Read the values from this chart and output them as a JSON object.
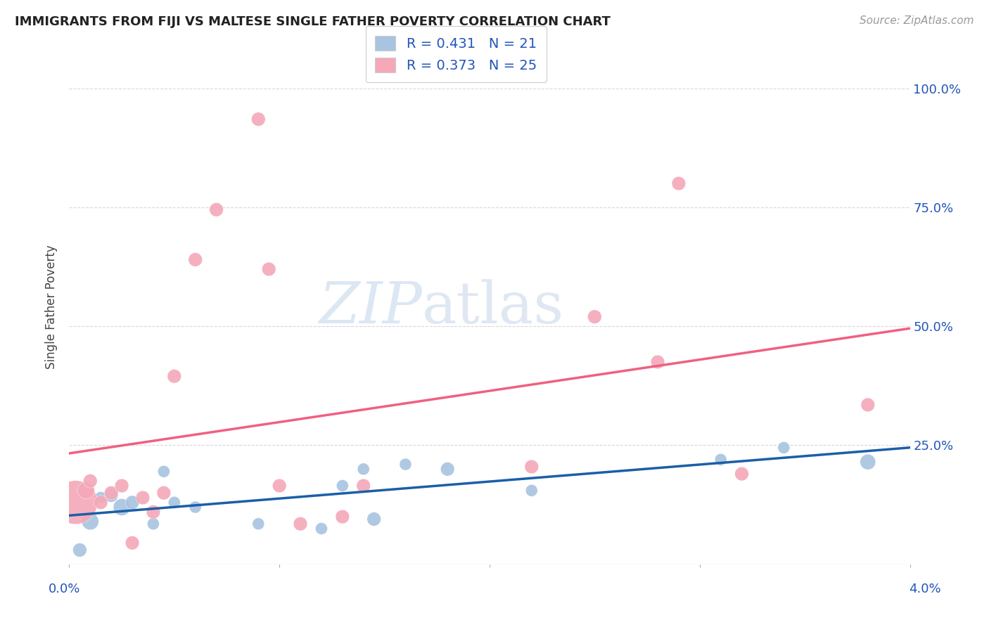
{
  "title": "IMMIGRANTS FROM FIJI VS MALTESE SINGLE FATHER POVERTY CORRELATION CHART",
  "source": "Source: ZipAtlas.com",
  "ylabel": "Single Father Poverty",
  "right_yticks": [
    "100.0%",
    "75.0%",
    "50.0%",
    "25.0%"
  ],
  "right_ytick_vals": [
    1.0,
    0.75,
    0.5,
    0.25
  ],
  "xlim": [
    0.0,
    0.04
  ],
  "ylim": [
    0.0,
    1.08
  ],
  "fiji_R": 0.431,
  "fiji_N": 21,
  "maltese_R": 0.373,
  "maltese_N": 25,
  "fiji_color": "#a8c4e0",
  "maltese_color": "#f4a8b8",
  "fiji_line_color": "#1a5fa8",
  "maltese_line_color": "#f06080",
  "fiji_scatter_x": [
    0.0005,
    0.001,
    0.0015,
    0.002,
    0.0025,
    0.003,
    0.004,
    0.0045,
    0.005,
    0.006,
    0.009,
    0.012,
    0.013,
    0.014,
    0.0145,
    0.016,
    0.018,
    0.022,
    0.031,
    0.034,
    0.038
  ],
  "fiji_scatter_y": [
    0.03,
    0.09,
    0.14,
    0.145,
    0.12,
    0.13,
    0.085,
    0.195,
    0.13,
    0.12,
    0.085,
    0.075,
    0.165,
    0.2,
    0.095,
    0.21,
    0.2,
    0.155,
    0.22,
    0.245,
    0.215
  ],
  "fiji_scatter_s": [
    200,
    300,
    150,
    200,
    300,
    200,
    150,
    150,
    150,
    150,
    150,
    150,
    150,
    150,
    200,
    150,
    200,
    150,
    150,
    150,
    250
  ],
  "maltese_scatter_x": [
    0.0003,
    0.0008,
    0.001,
    0.0015,
    0.002,
    0.0025,
    0.003,
    0.0035,
    0.004,
    0.0045,
    0.005,
    0.006,
    0.007,
    0.009,
    0.0095,
    0.01,
    0.011,
    0.013,
    0.014,
    0.022,
    0.025,
    0.028,
    0.029,
    0.032,
    0.038
  ],
  "maltese_scatter_y": [
    0.13,
    0.155,
    0.175,
    0.13,
    0.15,
    0.165,
    0.045,
    0.14,
    0.11,
    0.15,
    0.395,
    0.64,
    0.745,
    0.935,
    0.62,
    0.165,
    0.085,
    0.1,
    0.165,
    0.205,
    0.52,
    0.425,
    0.8,
    0.19,
    0.335
  ],
  "maltese_scatter_s": [
    2000,
    300,
    200,
    200,
    200,
    200,
    200,
    200,
    200,
    200,
    200,
    200,
    200,
    200,
    200,
    200,
    200,
    200,
    200,
    200,
    200,
    200,
    200,
    200,
    200
  ],
  "background_color": "#ffffff",
  "grid_color": "#d8d8d8"
}
